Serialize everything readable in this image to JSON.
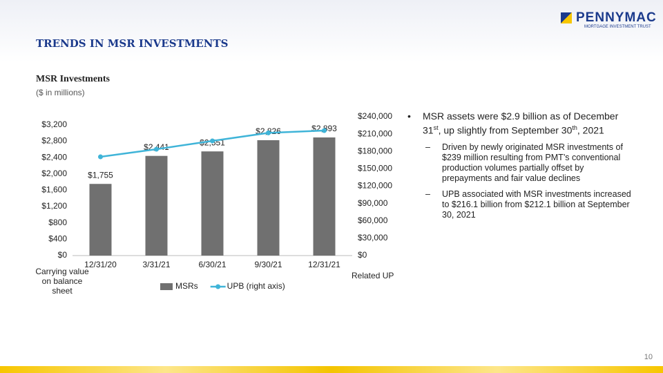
{
  "header": {
    "title": "TRENDS IN MSR INVESTMENTS",
    "logo": "PENNYMAC",
    "logo_subtitle": "MORTGAGE INVESTMENT TRUST"
  },
  "chart_data": {
    "type": "bar",
    "title": "MSR Investments",
    "subtitle": "($ in millions)",
    "categories": [
      "12/31/20",
      "3/31/21",
      "6/30/21",
      "9/30/21",
      "12/31/21"
    ],
    "series": [
      {
        "name": "MSRs",
        "color": "#707070",
        "values": [
          1755,
          2441,
          2551,
          2826,
          2893
        ],
        "value_labels": [
          "$1,755",
          "$2,441",
          "$2,551",
          "$2,826",
          "$2,893"
        ]
      },
      {
        "name": "UPB (right axis)",
        "color": "#3fb4d8",
        "axis": "y2",
        "type": "line",
        "values": [
          170700,
          183900,
          198200,
          212100,
          216100
        ]
      }
    ],
    "ylim": [
      0,
      3400
    ],
    "yticks": [
      {
        "value": 0,
        "label": "$0"
      },
      {
        "value": 400,
        "label": "$400"
      },
      {
        "value": 800,
        "label": "$800"
      },
      {
        "value": 1200,
        "label": "$1,200"
      },
      {
        "value": 1600,
        "label": "$1,600"
      },
      {
        "value": 2000,
        "label": "$2,000"
      },
      {
        "value": 2400,
        "label": "$2,400"
      },
      {
        "value": 2800,
        "label": "$2,800"
      },
      {
        "value": 3200,
        "label": "$3,200"
      }
    ],
    "y2lim": [
      0,
      240000
    ],
    "y2ticks": [
      {
        "value": 0,
        "label": "$0"
      },
      {
        "value": 30000,
        "label": "$30,000"
      },
      {
        "value": 60000,
        "label": "$60,000"
      },
      {
        "value": 90000,
        "label": "$90,000"
      },
      {
        "value": 120000,
        "label": "$120,000"
      },
      {
        "value": 150000,
        "label": "$150,000"
      },
      {
        "value": 180000,
        "label": "$180,000"
      },
      {
        "value": 210000,
        "label": "$210,000"
      },
      {
        "value": 240000,
        "label": "$240,000"
      }
    ],
    "ylabel": "Carrying value on balance sheet",
    "y2label": "Related UP",
    "grid": false,
    "legend": "bottom"
  },
  "bullets": [
    {
      "parts": [
        "MSR assets were $2.9 billion as of December 31",
        "st",
        ", up slightly from September 30",
        "th",
        ", 2021"
      ],
      "sub": [
        "Driven by newly originated MSR investments of $239 million resulting from PMT’s conventional production volumes partially offset by prepayments and fair value declines",
        "UPB associated with MSR investments increased to $216.1 billion from $212.1 billion at September 30, 2021"
      ]
    }
  ],
  "page_number": "10"
}
